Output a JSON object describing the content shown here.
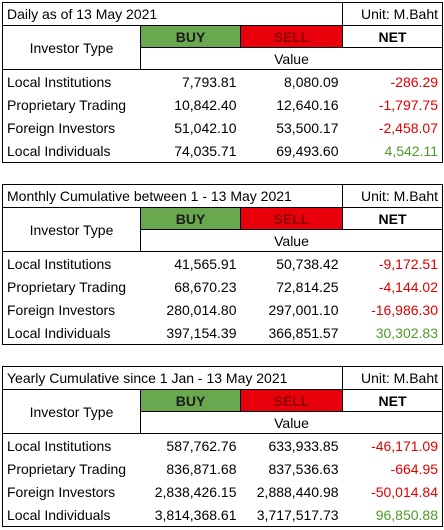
{
  "tables": [
    {
      "title": "Daily as of 13 May 2021",
      "unit": "Unit: M.Baht",
      "headers": {
        "investor_type": "Investor Type",
        "buy": "BUY",
        "sell": "SELL",
        "net": "NET",
        "value": "Value"
      },
      "rows": [
        [
          "Local Institutions",
          "7,793.81",
          "8,080.09",
          "-286.29"
        ],
        [
          "Proprietary Trading",
          "10,842.40",
          "12,640.16",
          "-1,797.75"
        ],
        [
          "Foreign Investors",
          "51,042.10",
          "53,500.17",
          "-2,458.07"
        ],
        [
          "Local Individuals",
          "74,035.71",
          "69,493.60",
          "4,542.11"
        ]
      ]
    },
    {
      "title": "Monthly Cumulative between 1 - 13 May 2021",
      "unit": "Unit: M.Baht",
      "headers": {
        "investor_type": "Investor Type",
        "buy": "BUY",
        "sell": "SELL",
        "net": "NET",
        "value": "Value"
      },
      "rows": [
        [
          "Local Institutions",
          "41,565.91",
          "50,738.42",
          "-9,172.51"
        ],
        [
          "Proprietary Trading",
          "68,670.23",
          "72,814.25",
          "-4,144.02"
        ],
        [
          "Foreign Investors",
          "280,014.80",
          "297,001.10",
          "-16,986.30"
        ],
        [
          "Local Individuals",
          "397,154.39",
          "366,851.57",
          "30,302.83"
        ]
      ]
    },
    {
      "title": "Yearly Cumulative since 1 Jan - 13 May 2021",
      "unit": "Unit: M.Baht",
      "headers": {
        "investor_type": "Investor Type",
        "buy": "BUY",
        "sell": "SELL",
        "net": "NET",
        "value": "Value"
      },
      "rows": [
        [
          "Local Institutions",
          "587,762.76",
          "633,933.85",
          "-46,171.09"
        ],
        [
          "Proprietary Trading",
          "836,871.68",
          "837,536.63",
          "-664.95"
        ],
        [
          "Foreign Investors",
          "2,838,426.15",
          "2,888,440.98",
          "-50,014.84"
        ],
        [
          "Local Individuals",
          "3,814,368.61",
          "3,717,517.73",
          "96,850.88"
        ]
      ]
    }
  ]
}
